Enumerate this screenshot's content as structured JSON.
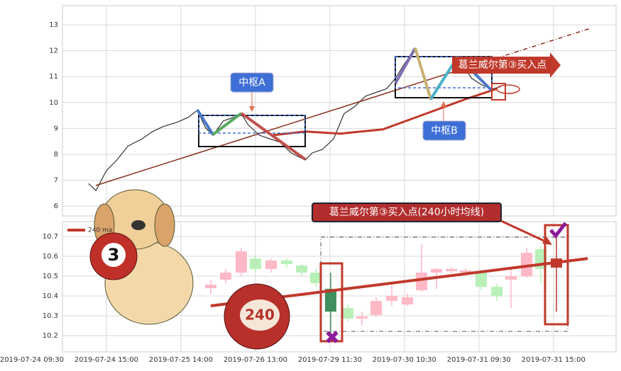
{
  "chart_data": [
    {
      "type": "line",
      "ylim": [
        5.62,
        13.74
      ],
      "yticks": [
        6,
        7,
        8,
        9,
        10,
        11,
        12,
        13
      ],
      "xlim": [
        0.41,
        7.84
      ],
      "grid": true,
      "series": [
        {
          "color": "#333333",
          "x": [
            0.76,
            0.86,
            1,
            1.14,
            1.29,
            1.48,
            1.62,
            1.76,
            1.95,
            2.1,
            2.22,
            2.33,
            2.43,
            2.57,
            2.71,
            2.81,
            2.9,
            3.05,
            3.19,
            3.33,
            3.48,
            3.67,
            3.76,
            3.9,
            4.05,
            4.19,
            4.33,
            4.48,
            4.62,
            4.76,
            4.88,
            5,
            5.14,
            5.24,
            5.35,
            5.48,
            5.59,
            5.71,
            5.81,
            5.9,
            6.05,
            6.19,
            6.29
          ],
          "values": [
            6.87,
            6.6,
            7.37,
            7.78,
            8.32,
            8.6,
            8.88,
            9.07,
            9.24,
            9.43,
            9.7,
            9.02,
            8.74,
            9.29,
            9.43,
            9.57,
            9.15,
            8.74,
            8.6,
            8.47,
            8.05,
            7.78,
            8.05,
            8.19,
            8.6,
            9.57,
            9.84,
            10.25,
            10.39,
            10.53,
            10.94,
            11.49,
            12.09,
            11.21,
            10.12,
            10.66,
            11.21,
            11.76,
            11.35,
            10.94,
            10.66,
            10.53,
            10.61
          ]
        },
        {
          "color": "#c0392b",
          "x": [
            3.24,
            3.67,
            4.14,
            4.71,
            5.29,
            5.81,
            6.24
          ],
          "values": [
            8.74,
            8.88,
            8.8,
            8.96,
            9.57,
            10.12,
            10.53
          ]
        }
      ],
      "annotations": [
        "中枢A",
        "中枢B",
        "葛兰威尔第③买入点"
      ]
    },
    {
      "type": "candlestick",
      "ylim": [
        10.118,
        10.775
      ],
      "yticks": [
        10.2,
        10.3,
        10.4,
        10.5,
        10.6,
        10.7
      ],
      "xlim": [
        0.41,
        7.84
      ],
      "grid": true,
      "xticks": [
        {
          "value": 0,
          "label": "2019-07-24 09:30"
        },
        {
          "value": 1,
          "label": "2019-07-24 15:00"
        },
        {
          "value": 2,
          "label": "2019-07-25 14:00"
        },
        {
          "value": 3,
          "label": "2019-07-26 13:00"
        },
        {
          "value": 4,
          "label": "2019-07-29 11:30"
        },
        {
          "value": 5,
          "label": "2019-07-30 10:30"
        },
        {
          "value": 6,
          "label": "2019-07-31 09:30"
        },
        {
          "value": 7,
          "label": "2019-07-31 15:00"
        }
      ],
      "x": [
        2.4,
        2.6,
        2.81,
        3,
        3.21,
        3.42,
        3.62,
        3.81,
        4.01,
        4.24,
        4.43,
        4.62,
        4.83,
        5.04,
        5.23,
        5.43,
        5.63,
        5.82,
        6.03,
        6.24,
        6.43,
        6.64,
        6.83,
        7.04
      ],
      "open": [
        10.439,
        10.482,
        10.518,
        10.589,
        10.536,
        10.579,
        10.554,
        10.518,
        10.436,
        10.339,
        10.286,
        10.304,
        10.375,
        10.357,
        10.429,
        10.518,
        10.525,
        10.518,
        10.518,
        10.446,
        10.482,
        10.5,
        10.636,
        10.589
      ],
      "close": [
        10.457,
        10.518,
        10.625,
        10.536,
        10.579,
        10.561,
        10.518,
        10.464,
        10.321,
        10.286,
        10.296,
        10.375,
        10.4,
        10.393,
        10.518,
        10.536,
        10.536,
        10.529,
        10.446,
        10.4,
        10.5,
        10.618,
        10.536,
        10.543
      ],
      "high": [
        10.482,
        10.536,
        10.643,
        10.607,
        10.589,
        10.589,
        10.561,
        10.536,
        10.518,
        10.357,
        10.321,
        10.393,
        10.464,
        10.411,
        10.661,
        10.543,
        10.546,
        10.54,
        10.529,
        10.464,
        10.536,
        10.643,
        10.65,
        10.714
      ],
      "low": [
        10.411,
        10.464,
        10.5,
        10.518,
        10.518,
        10.543,
        10.5,
        10.446,
        10.196,
        10.268,
        10.25,
        10.293,
        10.35,
        10.35,
        10.421,
        10.436,
        10.514,
        10.511,
        10.429,
        10.375,
        10.339,
        10.493,
        10.464,
        10.321
      ],
      "colors": [
        "#ffb8c6",
        "#ffb8c6",
        "#ffb8c6",
        "#b8f0b8",
        "#ffb8c6",
        "#b8f0b8",
        "#b8f0b8",
        "#b8f0b8",
        "#3f8f5f",
        "#b8f0b8",
        "#ffb8c6",
        "#ffb8c6",
        "#ffb8c6",
        "#ffb8c6",
        "#ffb8c6",
        "#ffb8c6",
        "#ffb8c6",
        "#ffb8c6",
        "#b8f0b8",
        "#b8f0b8",
        "#ffb8c6",
        "#ffb8c6",
        "#b8f0b8",
        "#c0392b"
      ],
      "series": [
        {
          "name": "240 ma",
          "color": "#c0392b",
          "x": [
            2.4,
            7.46
          ],
          "values": [
            10.35,
            10.589
          ]
        }
      ],
      "annotations": [
        "葛兰威尔第③买入点(240小时均线)",
        "3",
        "240"
      ]
    }
  ]
}
